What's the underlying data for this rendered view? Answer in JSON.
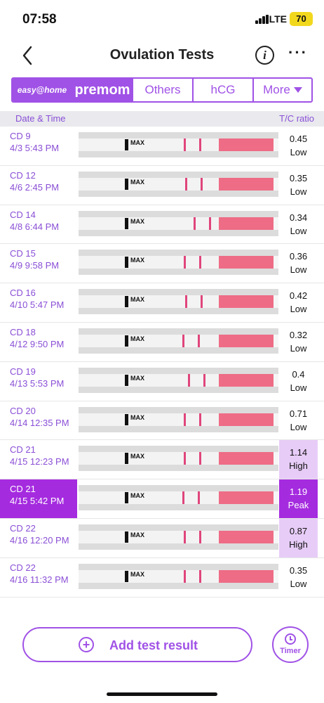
{
  "status_bar": {
    "time": "07:58",
    "network": "LTE",
    "battery": "70"
  },
  "nav": {
    "title": "Ovulation Tests",
    "info_icon": "info-icon",
    "more_icon": "more-dots-icon"
  },
  "brand_tabs": [
    {
      "label": "easy@home"
    },
    {
      "label": "premom"
    },
    {
      "label": "Others"
    },
    {
      "label": "hCG"
    },
    {
      "label": "More"
    }
  ],
  "table_header": {
    "left": "Date & Time",
    "right": "T/C ratio"
  },
  "tests": [
    {
      "cd": "CD 9",
      "datetime": "4/3 5:43 PM",
      "ratio": "0.45",
      "level": "Low"
    },
    {
      "cd": "CD 12",
      "datetime": "4/6 2:45 PM",
      "ratio": "0.35",
      "level": "Low"
    },
    {
      "cd": "CD 14",
      "datetime": "4/8 6:44 PM",
      "ratio": "0.34",
      "level": "Low"
    },
    {
      "cd": "CD 15",
      "datetime": "4/9 9:58 PM",
      "ratio": "0.36",
      "level": "Low"
    },
    {
      "cd": "CD 16",
      "datetime": "4/10 5:47 PM",
      "ratio": "0.42",
      "level": "Low"
    },
    {
      "cd": "CD 18",
      "datetime": "4/12 9:50 PM",
      "ratio": "0.32",
      "level": "Low"
    },
    {
      "cd": "CD 19",
      "datetime": "4/13 5:53 PM",
      "ratio": "0.4",
      "level": "Low"
    },
    {
      "cd": "CD 20",
      "datetime": "4/14 12:35 PM",
      "ratio": "0.71",
      "level": "Low"
    },
    {
      "cd": "CD 21",
      "datetime": "4/15 12:23 PM",
      "ratio": "1.14",
      "level": "High"
    },
    {
      "cd": "CD 21",
      "datetime": "4/15 5:42 PM",
      "ratio": "1.19",
      "level": "Peak"
    },
    {
      "cd": "CD 22",
      "datetime": "4/16 12:20 PM",
      "ratio": "0.87",
      "level": "High"
    },
    {
      "cd": "CD 22",
      "datetime": "4/16 11:32 PM",
      "ratio": "0.35",
      "level": "Low"
    }
  ],
  "strip_label": "MAX",
  "add_button": {
    "label": "Add test result"
  },
  "timer_button": {
    "label": "Timer"
  },
  "colors": {
    "accent": "#a052e6",
    "peak": "#a52bdf",
    "high_bg": "#e7ccf7"
  }
}
